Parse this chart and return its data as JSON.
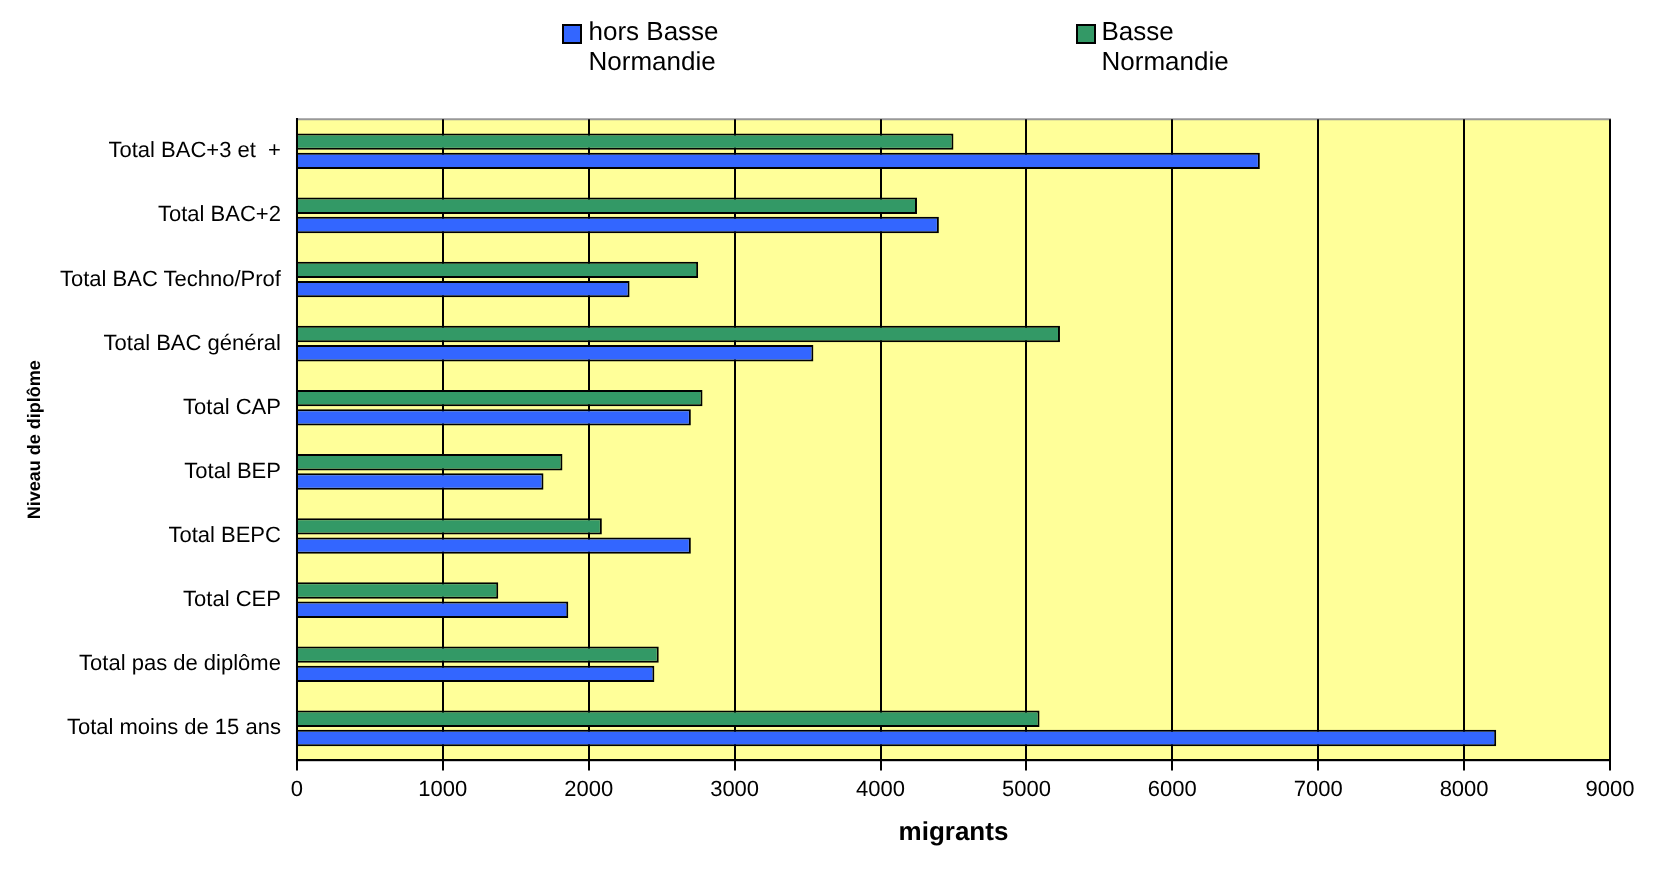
{
  "chart_data": {
    "type": "bar",
    "orientation": "horizontal",
    "xlabel": "migrants",
    "ylabel": "Niveau de diplôme",
    "categories": [
      "Total BAC+3 et  +",
      "Total BAC+2",
      "Total BAC Techno/Prof",
      "Total BAC général",
      "Total CAP",
      "Total BEP",
      "Total BEPC",
      "Total CEP",
      "Total pas de diplôme",
      "Total moins de 15 ans"
    ],
    "series": [
      {
        "name": "hors Basse Normandie",
        "color": "#3366ff",
        "values": [
          6600,
          4400,
          2280,
          3540,
          2700,
          1690,
          2700,
          1860,
          2450,
          8220
        ]
      },
      {
        "name": "Basse Normandie",
        "color": "#339966",
        "values": [
          4500,
          4250,
          2750,
          5230,
          2780,
          1820,
          2090,
          1380,
          2480,
          5090
        ]
      }
    ],
    "xlim": [
      0,
      9000
    ],
    "xticks": [
      0,
      1000,
      2000,
      3000,
      4000,
      5000,
      6000,
      7000,
      8000,
      9000
    ],
    "grid": "x",
    "legend": "top"
  }
}
